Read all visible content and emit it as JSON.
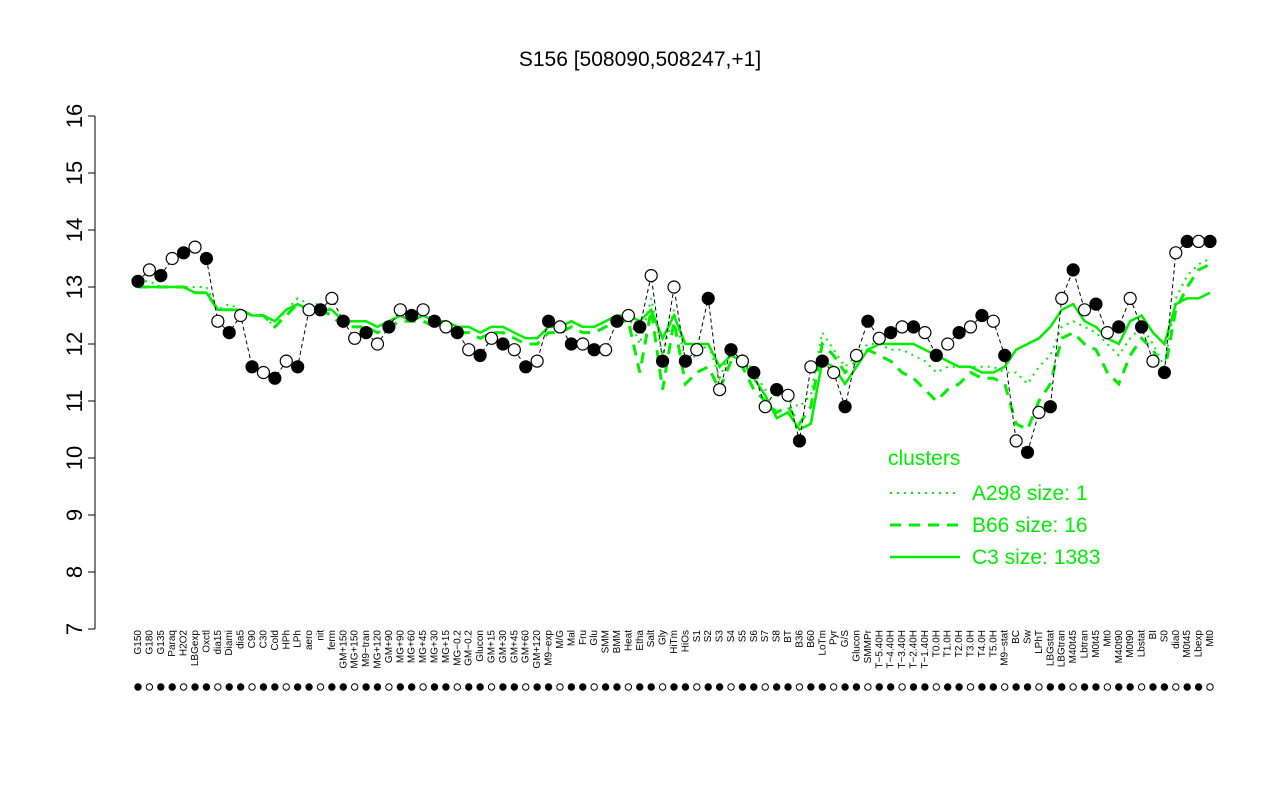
{
  "chart_data": {
    "type": "line",
    "title": "S156 [508090,508247,+1]",
    "xlabel": "",
    "ylabel": "",
    "ylim": [
      7,
      16
    ],
    "yticks": [
      7,
      8,
      9,
      10,
      11,
      12,
      13,
      14,
      15,
      16
    ],
    "grid": false,
    "x_tick_labels": [
      "G150",
      "G180",
      "G135",
      "Paraq",
      "H2O2",
      "LBGexp",
      "Oxctl",
      "dia15",
      "Diami",
      "dia5",
      "C90",
      "C30",
      "Cold",
      "HPh",
      "LPh",
      "aero",
      "nit",
      "ferm",
      "GM+150",
      "MG+150",
      "M9−tran",
      "MG+120",
      "GM+90",
      "MG+90",
      "MG+60",
      "MG+45",
      "MG+30",
      "MG+15",
      "MG−0.2",
      "GM−0.2",
      "Glucon",
      "GM+15",
      "GM+30",
      "GM+45",
      "GM+60",
      "GM+120",
      "M9−exp",
      "M/G",
      "Mal",
      "Fru",
      "Glu",
      "SMM",
      "BMM",
      "Heat",
      "Etha",
      "Salt",
      "Gly",
      "HiTm",
      "HiOs",
      "S1",
      "S2",
      "S3",
      "S4",
      "S5",
      "S6",
      "S7",
      "S8",
      "BT",
      "B36",
      "B60",
      "LoTm",
      "Pyr",
      "G/S",
      "Glucon",
      "SMMPr",
      "T−5.40H",
      "T−4.40H",
      "T−3.40H",
      "T−2.40H",
      "T−1.40H",
      "T0.0H",
      "T1.0H",
      "T2.0H",
      "T3.0H",
      "T4.0H",
      "T5.0H",
      "M9−stat",
      "BC",
      "Sw",
      "LPhT",
      "LBGstat",
      "LBGtran",
      "M40t45",
      "Lbtran",
      "M0t45",
      "Mt0",
      "M40t90",
      "M0t90",
      "Lbstat",
      "BI",
      "S0",
      "dia0",
      "M0t45",
      "Lbexp",
      "Mt0"
    ],
    "series": [
      {
        "name": "",
        "role": "probe measurements",
        "values": [
          13.1,
          13.3,
          13.2,
          13.5,
          13.6,
          13.7,
          13.5,
          12.4,
          12.2,
          12.5,
          11.6,
          11.5,
          11.4,
          11.7,
          11.6,
          12.6,
          12.6,
          12.8,
          12.4,
          12.1,
          12.2,
          12.0,
          12.3,
          12.6,
          12.5,
          12.6,
          12.4,
          12.3,
          12.2,
          11.9,
          11.8,
          12.1,
          12.0,
          11.9,
          11.6,
          11.7,
          12.4,
          12.3,
          12.0,
          12.0,
          11.9,
          11.9,
          12.4,
          12.5,
          12.3,
          13.2,
          11.7,
          13.0,
          11.7,
          11.9,
          12.8,
          11.2,
          11.9,
          11.7,
          11.5,
          10.9,
          11.2,
          11.1,
          10.3,
          11.6,
          11.7,
          11.5,
          10.9,
          11.8,
          12.4,
          12.1,
          12.2,
          12.3,
          12.3,
          12.2,
          11.8,
          12.0,
          12.2,
          12.3,
          12.5,
          12.4,
          11.8,
          10.3,
          10.1,
          10.8,
          10.9,
          12.8,
          13.3,
          12.6,
          12.7,
          12.2,
          12.3,
          12.8,
          12.3,
          11.7,
          11.5,
          13.6,
          13.8,
          13.8,
          13.8
        ]
      },
      {
        "name": "A298 size: 1",
        "values": [
          13.1,
          13.1,
          13.0,
          13.0,
          13.0,
          13.0,
          13.0,
          12.6,
          12.7,
          12.6,
          12.5,
          12.5,
          12.3,
          12.6,
          12.8,
          12.7,
          12.7,
          12.6,
          12.4,
          12.4,
          12.4,
          12.3,
          12.4,
          12.5,
          12.4,
          12.5,
          12.4,
          12.4,
          12.3,
          12.3,
          12.2,
          12.3,
          12.3,
          12.2,
          12.1,
          12.1,
          12.3,
          12.3,
          12.4,
          12.3,
          12.3,
          12.4,
          12.5,
          12.5,
          12.0,
          12.8,
          11.8,
          12.6,
          11.7,
          11.8,
          12.0,
          11.4,
          11.9,
          11.8,
          11.5,
          11.2,
          11.1,
          11.0,
          10.9,
          11.1,
          12.2,
          11.9,
          11.6,
          11.8,
          12.0,
          12.0,
          11.9,
          11.9,
          11.8,
          11.7,
          11.5,
          11.6,
          11.6,
          11.6,
          11.6,
          11.6,
          11.5,
          11.5,
          11.3,
          11.6,
          11.8,
          12.3,
          12.4,
          12.3,
          12.2,
          12.0,
          11.8,
          12.1,
          12.3,
          12.0,
          11.6,
          12.8,
          13.2,
          13.4,
          13.5
        ]
      },
      {
        "name": "B66 size: 16",
        "values": [
          13.0,
          13.0,
          13.0,
          13.0,
          13.0,
          12.9,
          12.9,
          12.6,
          12.6,
          12.6,
          12.5,
          12.5,
          12.3,
          12.5,
          12.7,
          12.6,
          12.6,
          12.5,
          12.3,
          12.3,
          12.3,
          12.2,
          12.3,
          12.4,
          12.4,
          12.4,
          12.3,
          12.3,
          12.2,
          12.2,
          12.1,
          12.2,
          12.2,
          12.1,
          12.0,
          12.0,
          12.2,
          12.2,
          12.3,
          12.2,
          12.2,
          12.3,
          12.4,
          12.4,
          11.5,
          12.6,
          11.2,
          12.4,
          11.3,
          11.5,
          11.6,
          11.2,
          11.7,
          11.6,
          11.2,
          11.0,
          10.8,
          10.9,
          10.6,
          10.9,
          12.0,
          11.8,
          11.5,
          11.7,
          11.9,
          11.8,
          11.7,
          11.5,
          11.4,
          11.2,
          11.0,
          11.2,
          11.3,
          11.5,
          11.4,
          11.4,
          11.3,
          10.6,
          10.5,
          11.0,
          11.3,
          12.1,
          12.2,
          12.0,
          11.9,
          11.5,
          11.3,
          11.8,
          12.1,
          11.9,
          11.5,
          12.6,
          13.0,
          13.3,
          13.4
        ]
      },
      {
        "name": "C3 size: 1383",
        "values": [
          13.0,
          13.0,
          13.0,
          13.0,
          13.0,
          12.9,
          12.9,
          12.6,
          12.6,
          12.6,
          12.5,
          12.5,
          12.4,
          12.6,
          12.7,
          12.6,
          12.6,
          12.6,
          12.4,
          12.4,
          12.4,
          12.3,
          12.4,
          12.5,
          12.4,
          12.5,
          12.4,
          12.4,
          12.3,
          12.3,
          12.2,
          12.3,
          12.3,
          12.2,
          12.1,
          12.1,
          12.3,
          12.3,
          12.4,
          12.3,
          12.3,
          12.4,
          12.5,
          12.5,
          12.4,
          12.6,
          12.1,
          12.5,
          12.0,
          12.0,
          12.0,
          11.6,
          11.8,
          11.7,
          11.4,
          11.1,
          10.7,
          10.8,
          10.5,
          10.6,
          11.7,
          11.6,
          11.3,
          11.6,
          11.9,
          12.0,
          12.0,
          12.0,
          12.0,
          11.9,
          11.8,
          11.7,
          11.6,
          11.6,
          11.5,
          11.5,
          11.6,
          11.9,
          12.0,
          12.1,
          12.3,
          12.6,
          12.7,
          12.4,
          12.3,
          12.1,
          12.0,
          12.4,
          12.5,
          12.2,
          12.0,
          12.7,
          12.8,
          12.8,
          12.9
        ]
      }
    ],
    "legend": {
      "title": "clusters",
      "placement": "bottom-right",
      "entries": [
        {
          "label": "A298 size: 1",
          "style": "dotted"
        },
        {
          "label": "B66 size: 16",
          "style": "dashed"
        },
        {
          "label": "C3 size: 1383",
          "style": "solid"
        }
      ]
    },
    "colors": {
      "clusters": "#00ee00",
      "points": "#000000",
      "background": "#ffffff"
    }
  }
}
